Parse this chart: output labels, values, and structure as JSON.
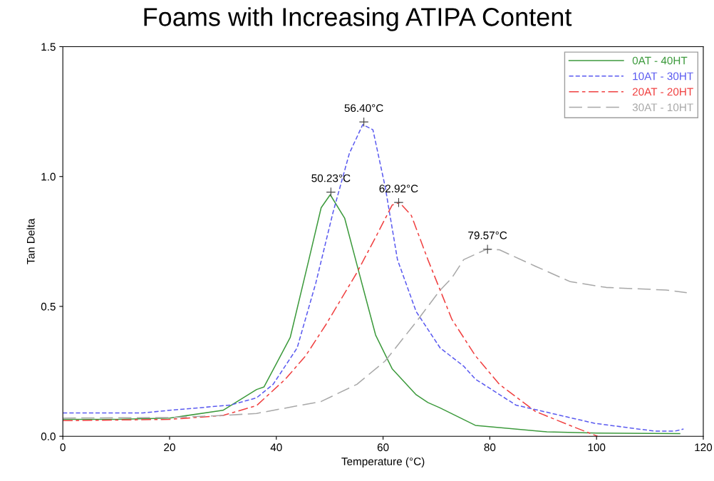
{
  "chart_data": {
    "type": "line",
    "title": "Foams with Increasing ATIPA Content",
    "xlabel": "Temperature (°C)",
    "ylabel": "Tan Delta",
    "xlim": [
      0,
      120
    ],
    "xticks": [
      0,
      20,
      40,
      60,
      80,
      100,
      120
    ],
    "ylim": [
      0,
      1.5
    ],
    "yticks": [
      {
        "value": 0,
        "label": "0.0"
      },
      {
        "value": 0.5,
        "label": "0.5"
      },
      {
        "value": 1.0,
        "label": "1.0"
      },
      {
        "value": 1.5,
        "label": "1.5"
      }
    ],
    "grid": false,
    "legend": "top right",
    "marker": "none",
    "series": [
      {
        "name": "0AT - 40HT",
        "color": "#3c9a3c",
        "line_style": "solid",
        "x": [
          0,
          10,
          20,
          30,
          36.3,
          37.7,
          42.6,
          46.1,
          48.4,
          50.1,
          52.8,
          55.5,
          58.6,
          61.7,
          66.2,
          68.4,
          70.6,
          77.3,
          90.7,
          100,
          115.6
        ],
        "values": [
          0.065,
          0.065,
          0.07,
          0.1,
          0.18,
          0.19,
          0.38,
          0.68,
          0.88,
          0.93,
          0.84,
          0.63,
          0.39,
          0.26,
          0.16,
          0.13,
          0.11,
          0.042,
          0.017,
          0.012,
          0.01
        ]
      },
      {
        "name": "10AT - 30HT",
        "color": "#5a5af0",
        "line_style": "dashed",
        "x": [
          0,
          15,
          20,
          31.4,
          36.3,
          39.4,
          43.9,
          47.4,
          50.6,
          53.7,
          56.2,
          58.1,
          60.4,
          62.7,
          66.2,
          70.7,
          75.1,
          77.3,
          84.9,
          99.6,
          110.8,
          114.7,
          116.3
        ],
        "values": [
          0.09,
          0.09,
          0.1,
          0.12,
          0.148,
          0.2,
          0.34,
          0.59,
          0.86,
          1.09,
          1.2,
          1.18,
          0.96,
          0.68,
          0.48,
          0.34,
          0.27,
          0.22,
          0.12,
          0.05,
          0.02,
          0.02,
          0.028
        ]
      },
      {
        "name": "20AT - 20HT",
        "color": "#f04040",
        "line_style": "dashed",
        "x": [
          0,
          20,
          30,
          36.3,
          41.7,
          45.5,
          49.3,
          55.1,
          58.7,
          61.7,
          63.1,
          65.3,
          68.4,
          72.9,
          77.3,
          81.8,
          88.5,
          95.1,
          100.2
        ],
        "values": [
          0.06,
          0.065,
          0.08,
          0.118,
          0.22,
          0.31,
          0.43,
          0.63,
          0.77,
          0.89,
          0.9,
          0.85,
          0.68,
          0.45,
          0.31,
          0.2,
          0.096,
          0.041,
          0
        ]
      },
      {
        "name": "30AT - 10HT",
        "color": "#a8a8a8",
        "line_style": "dashed",
        "x": [
          0,
          20,
          30,
          36.3,
          48.4,
          55.1,
          60.4,
          66.2,
          70.6,
          72.9,
          75.1,
          79.4,
          81.8,
          88.5,
          95.1,
          101.8,
          113,
          116.9
        ],
        "values": [
          0.07,
          0.072,
          0.08,
          0.088,
          0.134,
          0.2,
          0.29,
          0.44,
          0.56,
          0.61,
          0.68,
          0.72,
          0.718,
          0.655,
          0.595,
          0.573,
          0.563,
          0.553
        ]
      }
    ],
    "annotations": [
      {
        "text": "50.23°C",
        "x": 50.23,
        "y": 0.94
      },
      {
        "text": "56.40°C",
        "x": 56.4,
        "y": 1.21
      },
      {
        "text": "62.92°C",
        "x": 62.92,
        "y": 0.9
      },
      {
        "text": "79.57°C",
        "x": 79.57,
        "y": 0.72
      }
    ]
  }
}
